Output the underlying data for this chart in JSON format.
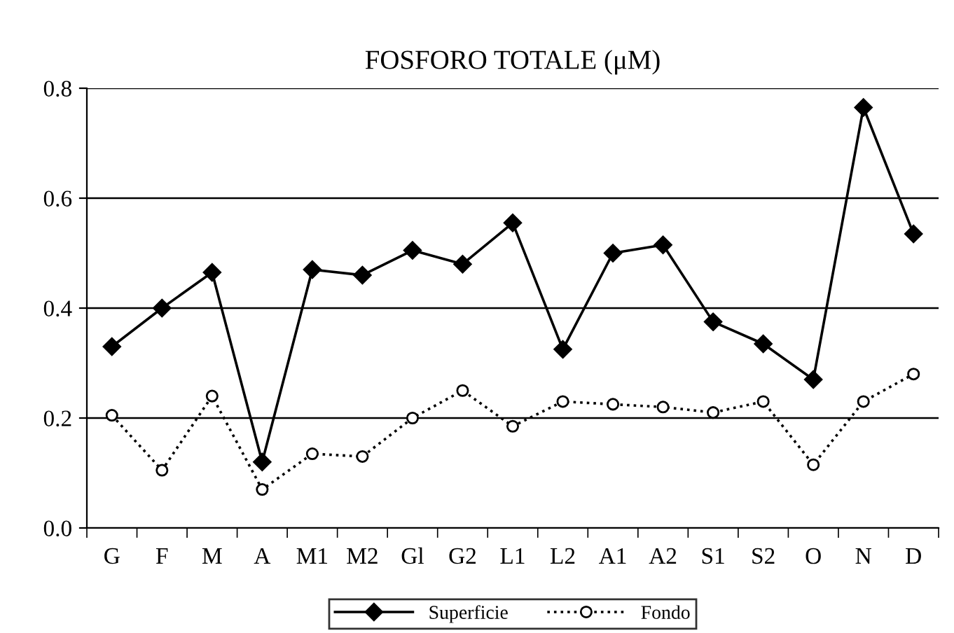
{
  "chart_data": {
    "type": "line",
    "title": "FOSFORO TOTALE (μM)",
    "categories": [
      "G",
      "F",
      "M",
      "A",
      "M1",
      "M2",
      "Gl",
      "G2",
      "L1",
      "L2",
      "A1",
      "A2",
      "S1",
      "S2",
      "O",
      "N",
      "D"
    ],
    "series": [
      {
        "name": "Superficie",
        "color": "#000000",
        "marker": "diamond",
        "line_style": "solid",
        "values": [
          0.33,
          0.4,
          0.465,
          0.12,
          0.47,
          0.46,
          0.505,
          0.48,
          0.555,
          0.325,
          0.5,
          0.515,
          0.375,
          0.335,
          0.27,
          0.765,
          0.535
        ]
      },
      {
        "name": "Fondo",
        "color": "#000000",
        "marker": "circle",
        "line_style": "dotted",
        "values": [
          0.205,
          0.105,
          0.24,
          0.07,
          0.135,
          0.13,
          0.2,
          0.25,
          0.185,
          0.23,
          0.225,
          0.22,
          0.21,
          0.23,
          0.115,
          0.23,
          0.28
        ]
      }
    ],
    "ylim": [
      0,
      0.8
    ],
    "yticks": [
      {
        "value": 0,
        "label": "0.0"
      },
      {
        "value": 0.2,
        "label": "0.2"
      },
      {
        "value": 0.4,
        "label": "0.4"
      },
      {
        "value": 0.6,
        "label": "0.6"
      },
      {
        "value": 0.8,
        "label": "0.8"
      }
    ],
    "grid": "y",
    "legend": "bottom"
  }
}
